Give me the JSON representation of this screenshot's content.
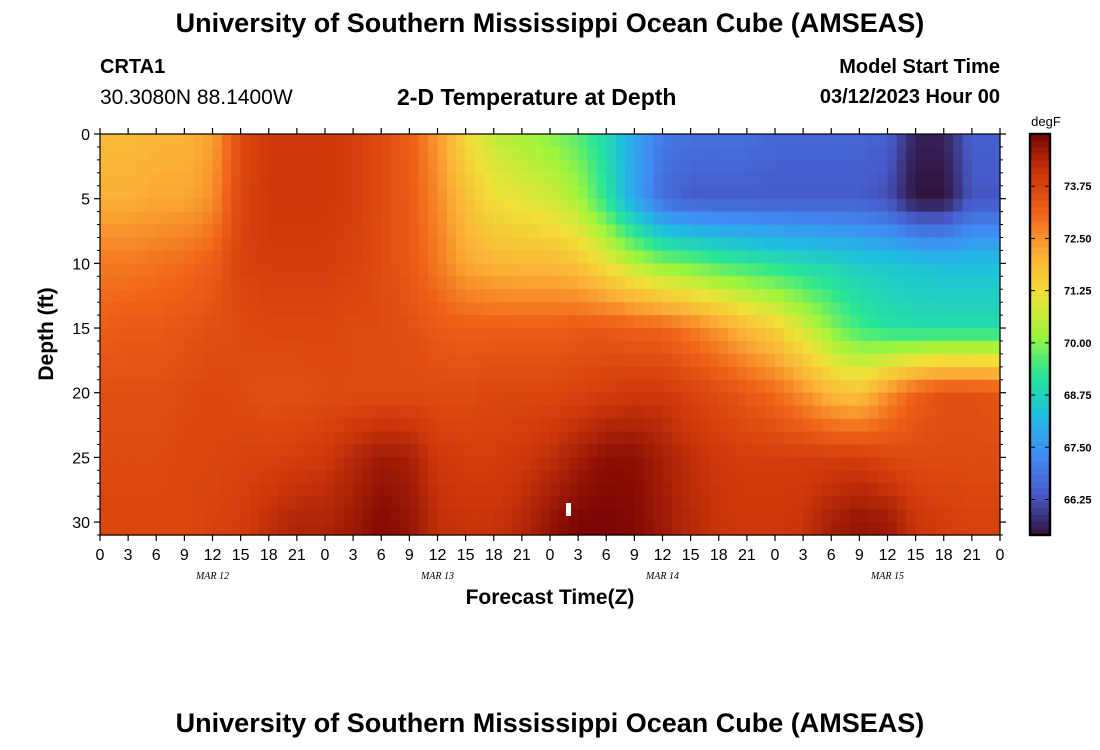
{
  "header": {
    "title": "University of Southern Mississippi Ocean Cube (AMSEAS)",
    "station_id": "CRTA1",
    "station_coords": "30.3080N  88.1400W",
    "plot_title": "2-D Temperature at Depth",
    "model_start_label": "Model Start Time",
    "model_start_value": "03/12/2023 Hour 00"
  },
  "footer": {
    "title": "University of Southern Mississippi Ocean Cube (AMSEAS)"
  },
  "chart_data": {
    "type": "heatmap",
    "title": "2-D Temperature at Depth",
    "xlabel": "Forecast Time(Z)",
    "ylabel": "Depth (ft)",
    "x_tick_labels": [
      "0",
      "3",
      "6",
      "9",
      "12",
      "15",
      "18",
      "21",
      "0",
      "3",
      "6",
      "9",
      "12",
      "15",
      "18",
      "21",
      "0",
      "3",
      "6",
      "9",
      "12",
      "15",
      "18",
      "21",
      "0",
      "3",
      "6",
      "9",
      "12",
      "15",
      "18",
      "21",
      "0"
    ],
    "x_range_hours": [
      0,
      96
    ],
    "date_labels": [
      {
        "label": "MAR 12",
        "hour": 12
      },
      {
        "label": "MAR 13",
        "hour": 36
      },
      {
        "label": "MAR 14",
        "hour": 60
      },
      {
        "label": "MAR 15",
        "hour": 84
      }
    ],
    "y_ticks": [
      0,
      5,
      10,
      15,
      20,
      25,
      30
    ],
    "ylim": [
      0,
      31
    ],
    "y_inverted": true,
    "colorbar": {
      "unit": "degF",
      "tick_labels": [
        "73.75",
        "72.50",
        "71.25",
        "70.00",
        "68.75",
        "67.50",
        "66.25"
      ],
      "tick_values": [
        73.75,
        72.5,
        71.25,
        70.0,
        68.75,
        67.5,
        66.25
      ],
      "range": [
        65.4,
        75.0
      ]
    },
    "x_hours": [
      0,
      3,
      6,
      9,
      12,
      15,
      18,
      21,
      24,
      27,
      30,
      33,
      36,
      39,
      42,
      45,
      48,
      51,
      54,
      57,
      60,
      63,
      66,
      69,
      72,
      75,
      78,
      81,
      84,
      87,
      90,
      93,
      96
    ],
    "depths_ft": [
      0,
      5,
      10,
      15,
      20,
      25,
      30
    ],
    "values_degF": [
      [
        71.9,
        71.9,
        72.0,
        72.0,
        72.3,
        73.6,
        74.0,
        74.0,
        74.0,
        73.9,
        73.6,
        73.2,
        72.4,
        71.3,
        70.6,
        70.3,
        70.0,
        69.6,
        68.9,
        67.8,
        67.0,
        66.8,
        66.8,
        66.8,
        66.6,
        66.6,
        66.6,
        66.6,
        66.5,
        65.6,
        65.6,
        66.5,
        66.5
      ],
      [
        72.1,
        72.1,
        72.2,
        72.2,
        72.5,
        73.7,
        74.0,
        74.0,
        74.0,
        73.9,
        73.6,
        73.3,
        72.6,
        71.8,
        71.2,
        71.0,
        70.8,
        70.3,
        69.2,
        67.8,
        66.7,
        66.4,
        66.4,
        66.4,
        66.4,
        66.4,
        66.4,
        66.4,
        66.2,
        65.4,
        65.4,
        66.3,
        66.3
      ],
      [
        72.8,
        72.8,
        72.9,
        73.0,
        73.2,
        73.8,
        73.9,
        73.9,
        73.9,
        73.8,
        73.6,
        73.3,
        72.8,
        72.2,
        72.0,
        71.9,
        71.9,
        71.7,
        71.1,
        70.5,
        70.0,
        69.8,
        69.5,
        69.3,
        69.1,
        68.9,
        68.8,
        68.6,
        68.5,
        68.4,
        68.3,
        68.3,
        68.3
      ],
      [
        73.2,
        73.3,
        73.3,
        73.4,
        73.5,
        73.6,
        73.7,
        73.7,
        73.7,
        73.6,
        73.6,
        73.5,
        73.3,
        73.2,
        73.2,
        73.2,
        73.2,
        73.3,
        73.3,
        73.2,
        73.1,
        72.8,
        72.4,
        71.9,
        71.5,
        70.8,
        70.0,
        69.4,
        69.1,
        69.0,
        69.0,
        69.0,
        69.0
      ],
      [
        73.5,
        73.5,
        73.5,
        73.6,
        73.7,
        73.6,
        73.5,
        73.5,
        73.6,
        73.6,
        73.6,
        73.6,
        73.6,
        73.6,
        73.7,
        73.7,
        73.7,
        73.8,
        73.9,
        74.0,
        74.0,
        73.8,
        73.6,
        73.3,
        73.0,
        72.5,
        71.9,
        71.7,
        72.5,
        73.2,
        73.5,
        73.5,
        73.4
      ],
      [
        73.6,
        73.6,
        73.6,
        73.7,
        73.7,
        73.8,
        73.8,
        73.9,
        74.0,
        74.3,
        74.6,
        74.5,
        74.0,
        73.9,
        73.9,
        74.0,
        74.2,
        74.5,
        74.8,
        74.8,
        74.5,
        74.2,
        74.0,
        73.9,
        73.9,
        73.9,
        73.9,
        73.9,
        73.7,
        73.6,
        73.6,
        73.6,
        73.6
      ],
      [
        73.7,
        73.7,
        73.7,
        73.7,
        73.8,
        73.9,
        74.2,
        74.4,
        74.4,
        74.6,
        74.9,
        74.7,
        74.2,
        74.1,
        74.1,
        74.3,
        74.7,
        75.0,
        75.0,
        74.9,
        74.6,
        74.3,
        74.1,
        74.0,
        74.0,
        74.1,
        74.5,
        74.7,
        74.6,
        74.1,
        73.9,
        73.8,
        73.8
      ]
    ]
  }
}
